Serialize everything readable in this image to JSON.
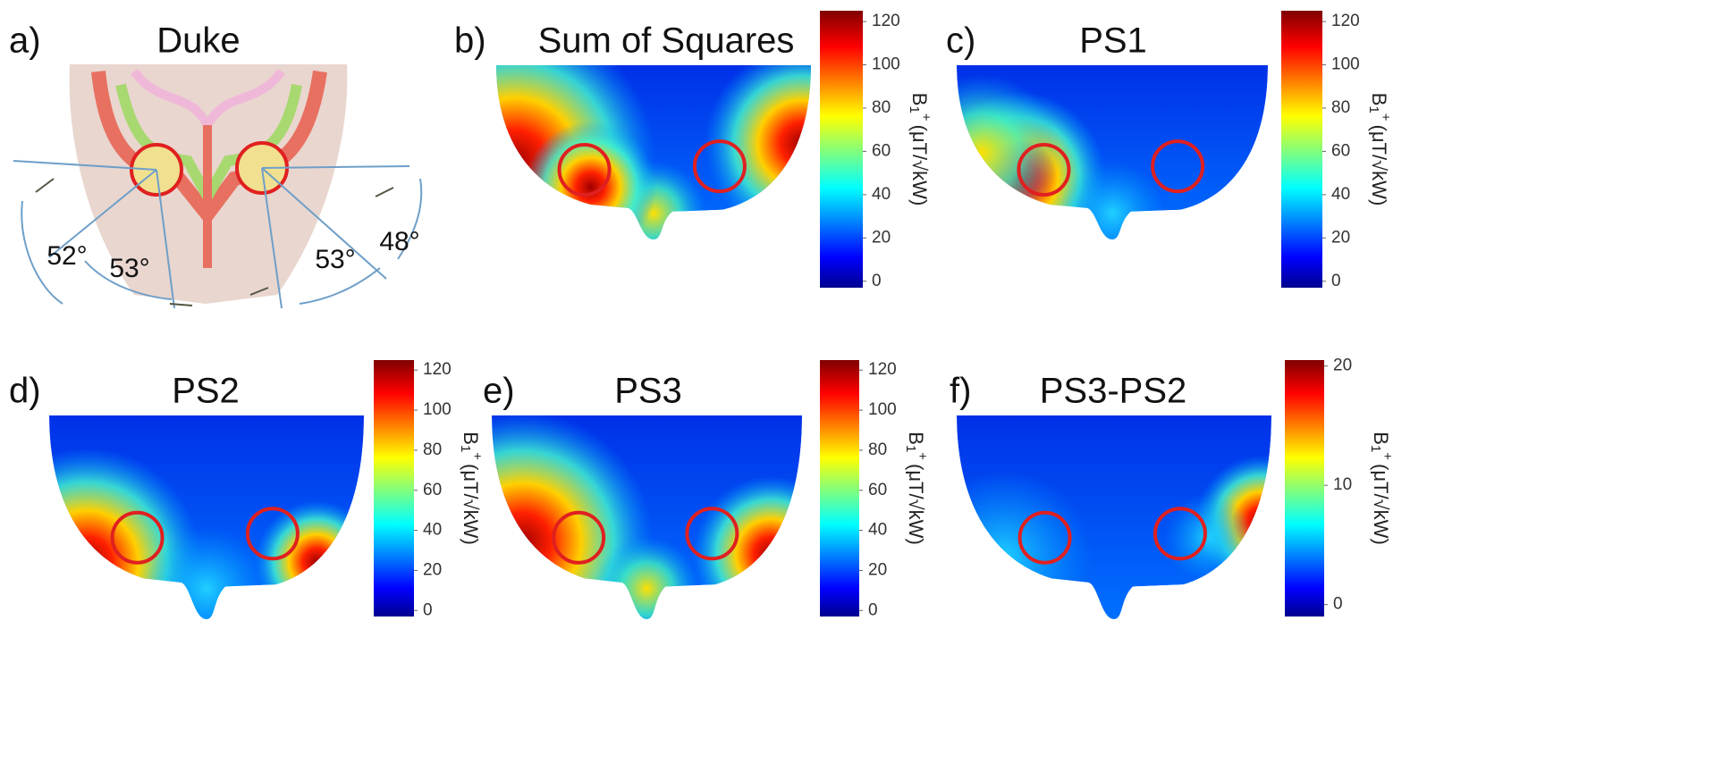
{
  "chart_data": [
    {
      "type": "anatomy",
      "panel_label": "a)",
      "title": "Duke",
      "annotations": [
        "52°",
        "53°",
        "53°",
        "48°"
      ]
    },
    {
      "type": "heatmap",
      "panel_label": "b)",
      "title": "Sum of Squares",
      "ylim": [
        -3,
        125
      ],
      "yticks": [
        0,
        20,
        40,
        60,
        80,
        100,
        120
      ],
      "colorbar_label": {
        "base": "B",
        "sub": "1",
        "sup": "+",
        "unit": "(μT/√kW)"
      }
    },
    {
      "type": "heatmap",
      "panel_label": "c)",
      "title": "PS1",
      "ylim": [
        -3,
        125
      ],
      "yticks": [
        0,
        20,
        40,
        60,
        80,
        100,
        120
      ],
      "colorbar_label": {
        "base": "B",
        "sub": "1",
        "sup": "+",
        "unit": "(μT/√kW)"
      }
    },
    {
      "type": "heatmap",
      "panel_label": "d)",
      "title": "PS2",
      "ylim": [
        -3,
        125
      ],
      "yticks": [
        0,
        20,
        40,
        60,
        80,
        100,
        120
      ],
      "colorbar_label": {
        "base": "B",
        "sub": "1",
        "sup": "+",
        "unit": "(μT/√kW)"
      }
    },
    {
      "type": "heatmap",
      "panel_label": "e)",
      "title": "PS3",
      "ylim": [
        -3,
        125
      ],
      "yticks": [
        0,
        20,
        40,
        60,
        80,
        100,
        120
      ],
      "colorbar_label": {
        "base": "B",
        "sub": "1",
        "sup": "+",
        "unit": "(μT/√kW)"
      }
    },
    {
      "type": "heatmap",
      "panel_label": "f)",
      "title": "PS3-PS2",
      "ylim": [
        -1,
        20.5
      ],
      "yticks": [
        0,
        10,
        20
      ],
      "colorbar_label": {
        "base": "B",
        "sub": "1",
        "sup": "+",
        "unit": "(μT/√kW)"
      }
    }
  ]
}
